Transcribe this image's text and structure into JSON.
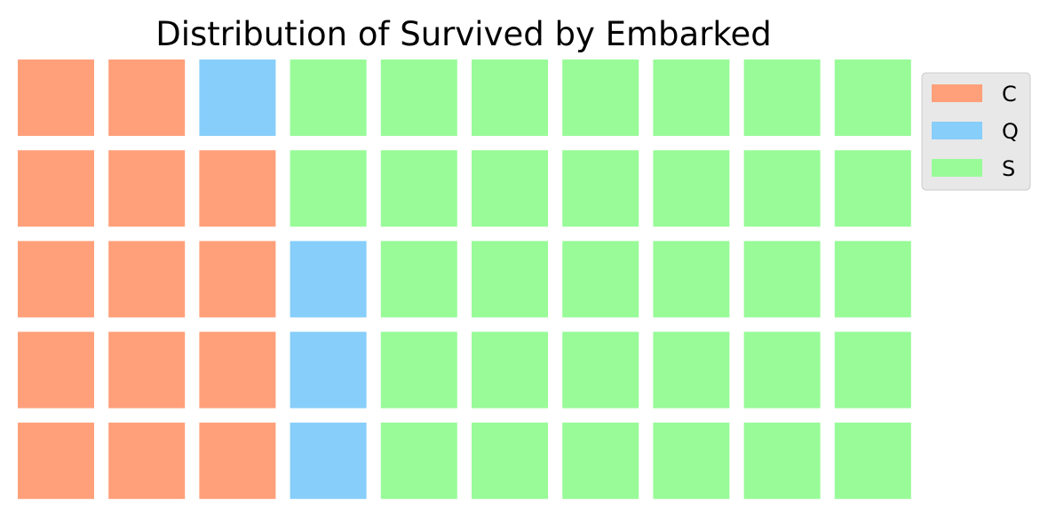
{
  "chart_data": {
    "type": "waffle",
    "title": "Distribution of Survived by Embarked",
    "rows": 5,
    "columns": 10,
    "fill_order": "column-major, bottom-to-top",
    "categories": [
      "C",
      "Q",
      "S"
    ],
    "values": [
      14,
      4,
      32
    ],
    "colors": [
      "#FFA07A",
      "#87CEFA",
      "#98FB98"
    ],
    "legend": {
      "placement": "upper right, outside plot",
      "entries": [
        "C",
        "Q",
        "S"
      ]
    },
    "grid": false
  }
}
